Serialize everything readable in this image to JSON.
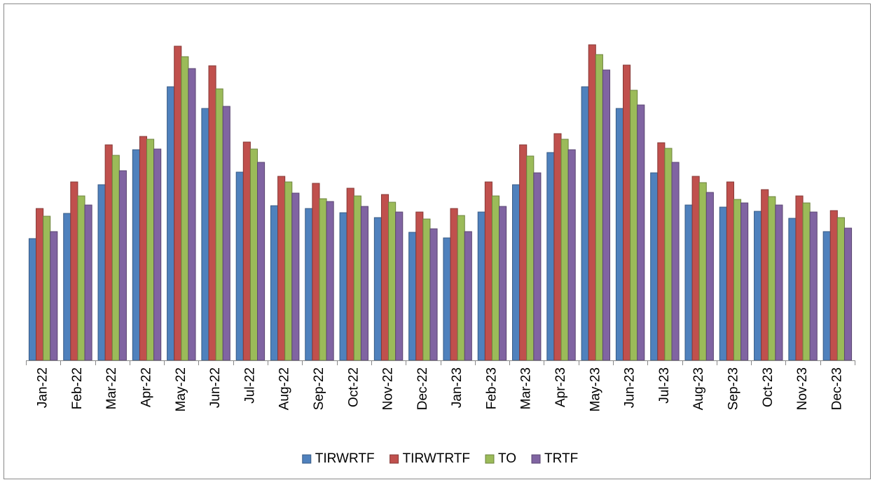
{
  "chart_data": {
    "type": "bar",
    "categories": [
      "Jan-22",
      "Feb-22",
      "Mar-22",
      "Apr-22",
      "May-22",
      "Jun-22",
      "Jul-22",
      "Aug-22",
      "Sep-22",
      "Oct-22",
      "Nov-22",
      "Dec-22",
      "Jan-23",
      "Feb-23",
      "Mar-23",
      "Apr-23",
      "May-23",
      "Jun-23",
      "Jul-23",
      "Aug-23",
      "Sep-23",
      "Oct-23",
      "Nov-23",
      "Dec-23"
    ],
    "series": [
      {
        "name": "TIRWRTF",
        "color": "#4f81bd",
        "values": [
          174,
          210,
          251,
          301,
          391,
          360,
          269,
          221,
          217,
          211,
          204,
          183,
          175,
          212,
          251,
          297,
          391,
          360,
          268,
          222,
          219,
          213,
          203,
          184
        ]
      },
      {
        "name": "TIRWTRTF",
        "color": "#c0504d",
        "values": [
          217,
          255,
          308,
          320,
          449,
          421,
          312,
          263,
          253,
          246,
          237,
          212,
          217,
          255,
          308,
          324,
          451,
          422,
          311,
          263,
          255,
          244,
          235,
          214
        ]
      },
      {
        "name": "TO",
        "color": "#9bbb59",
        "values": [
          206,
          235,
          293,
          316,
          434,
          388,
          302,
          255,
          231,
          235,
          226,
          202,
          207,
          235,
          292,
          316,
          437,
          386,
          303,
          254,
          230,
          234,
          225,
          204
        ]
      },
      {
        "name": "TRTF",
        "color": "#8064a2",
        "values": [
          184,
          222,
          271,
          302,
          417,
          363,
          283,
          239,
          227,
          220,
          212,
          188,
          184,
          220,
          268,
          301,
          415,
          365,
          283,
          240,
          225,
          222,
          212,
          189
        ]
      }
    ],
    "ylim": [
      0,
      470
    ],
    "legend": "bottom"
  }
}
